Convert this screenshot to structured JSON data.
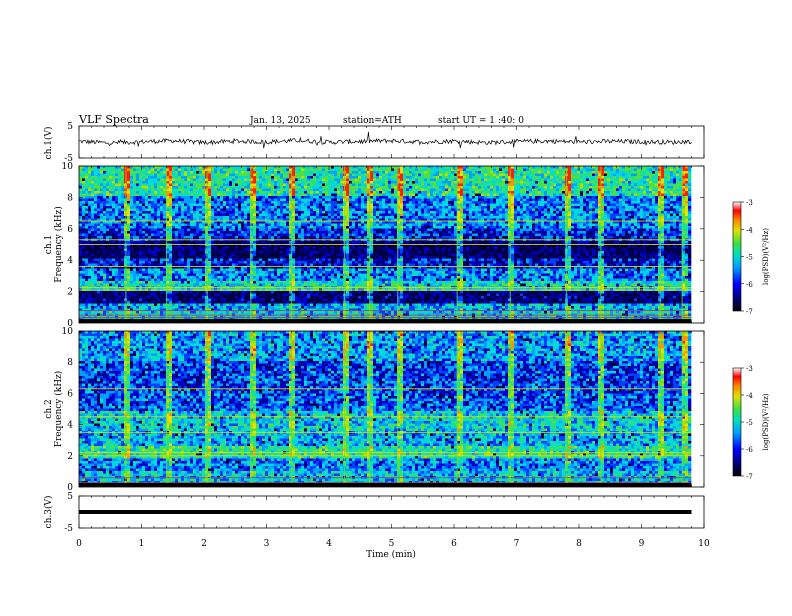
{
  "header": {
    "title": "VLF  Spectra",
    "date": "Jan. 13, 2025",
    "station": "station=ATH",
    "start": "start  UT  =   1 :40: 0"
  },
  "chart_data": [
    {
      "type": "line",
      "panel": "ch1-waveform",
      "ylabel": "ch.1(V)",
      "ylim": [
        -5,
        5
      ],
      "yticks": [
        "5",
        "-5"
      ],
      "xlim": [
        0,
        10
      ],
      "x": [
        0,
        0.5,
        1,
        1.5,
        2,
        2.5,
        3,
        3.5,
        4,
        4.5,
        5,
        5.5,
        6,
        6.5,
        7,
        7.5,
        8,
        8.5,
        9,
        9.5,
        9.8
      ],
      "values": [
        0.2,
        -0.3,
        0.1,
        0.4,
        -0.2,
        0.3,
        0.0,
        0.5,
        -0.1,
        0.2,
        0.4,
        0.0,
        0.3,
        -0.2,
        0.1,
        0.3,
        0.0,
        0.2,
        0.1,
        -0.1,
        0.2
      ]
    },
    {
      "type": "heatmap",
      "panel": "ch1-spectrogram",
      "ylabel": "ch.1\nFrequency  (kHz)",
      "ylim": [
        0,
        10
      ],
      "yticks": [
        "0",
        "2",
        "4",
        "6",
        "8",
        "10"
      ],
      "xlim": [
        0,
        10
      ],
      "colorbar": {
        "label": "log(PSD)(V²/Hz)",
        "range": [
          -7,
          -3
        ],
        "ticks": [
          "-3",
          "-4",
          "-5",
          "-6",
          "-7"
        ]
      },
      "bands": [
        {
          "f_lo": 0.0,
          "f_hi": 0.6,
          "level": -5.2
        },
        {
          "f_lo": 0.6,
          "f_hi": 1.1,
          "level": -5.4
        },
        {
          "f_lo": 1.1,
          "f_hi": 1.9,
          "level": -6.6
        },
        {
          "f_lo": 1.9,
          "f_hi": 2.6,
          "level": -5.1
        },
        {
          "f_lo": 2.6,
          "f_hi": 3.4,
          "level": -5.6
        },
        {
          "f_lo": 3.4,
          "f_hi": 4.0,
          "level": -6.1
        },
        {
          "f_lo": 4.0,
          "f_hi": 5.2,
          "level": -6.7
        },
        {
          "f_lo": 5.2,
          "f_hi": 6.0,
          "level": -6.0
        },
        {
          "f_lo": 6.0,
          "f_hi": 8.0,
          "level": -5.6
        },
        {
          "f_lo": 8.0,
          "f_hi": 10.0,
          "level": -4.9
        }
      ],
      "lines_khz": [
        0.2,
        0.35,
        0.5,
        0.8,
        2.1,
        2.25,
        3.6,
        5.0,
        5.3,
        6.5
      ],
      "sferics_min": [
        0.75,
        1.4,
        2.05,
        2.75,
        3.4,
        4.25,
        4.65,
        5.1,
        6.05,
        6.9,
        7.8,
        8.35,
        9.3,
        9.65
      ]
    },
    {
      "type": "heatmap",
      "panel": "ch2-spectrogram",
      "ylabel": "ch.2\nFrequency  (kHz)",
      "ylim": [
        0,
        10
      ],
      "yticks": [
        "0",
        "2",
        "4",
        "6",
        "8",
        "10"
      ],
      "xlim": [
        0,
        10
      ],
      "colorbar": {
        "label": "log(PSD)(V²/Hz)",
        "range": [
          -7,
          -3
        ],
        "ticks": [
          "-3",
          "-4",
          "-5",
          "-6",
          "-7"
        ]
      },
      "bands": [
        {
          "f_lo": 0.0,
          "f_hi": 1.0,
          "level": -5.3
        },
        {
          "f_lo": 1.0,
          "f_hi": 1.8,
          "level": -5.6
        },
        {
          "f_lo": 1.8,
          "f_hi": 2.6,
          "level": -4.9
        },
        {
          "f_lo": 2.6,
          "f_hi": 3.6,
          "level": -5.4
        },
        {
          "f_lo": 3.6,
          "f_hi": 4.8,
          "level": -5.2
        },
        {
          "f_lo": 4.8,
          "f_hi": 6.0,
          "level": -5.8
        },
        {
          "f_lo": 6.0,
          "f_hi": 8.0,
          "level": -5.9
        },
        {
          "f_lo": 8.0,
          "f_hi": 10.0,
          "level": -5.5
        }
      ],
      "lines_khz": [
        0.3,
        0.6,
        2.0,
        2.2,
        3.5,
        4.5,
        6.3
      ],
      "sferics_min": [
        0.75,
        1.4,
        2.05,
        2.75,
        3.4,
        4.25,
        4.65,
        5.1,
        6.05,
        6.9,
        7.8,
        8.35,
        9.3,
        9.65
      ]
    },
    {
      "type": "line",
      "panel": "ch3-waveform",
      "ylabel": "ch.3(V)",
      "ylim": [
        -5,
        5
      ],
      "yticks": [
        "5",
        "-5"
      ],
      "xlim": [
        0,
        10
      ],
      "x": [
        0,
        9.8
      ],
      "values": [
        0,
        0
      ]
    }
  ],
  "xaxis": {
    "label": "Time  (min)",
    "ticks": [
      "0",
      "1",
      "2",
      "3",
      "4",
      "5",
      "6",
      "7",
      "8",
      "9",
      "10"
    ]
  },
  "colors": {
    "scale": [
      "#000080",
      "#0000ff",
      "#00a0ff",
      "#00e0c0",
      "#40e040",
      "#e0e000",
      "#ff8000",
      "#ff0000",
      "#ffffff"
    ],
    "trace": "#000000"
  }
}
